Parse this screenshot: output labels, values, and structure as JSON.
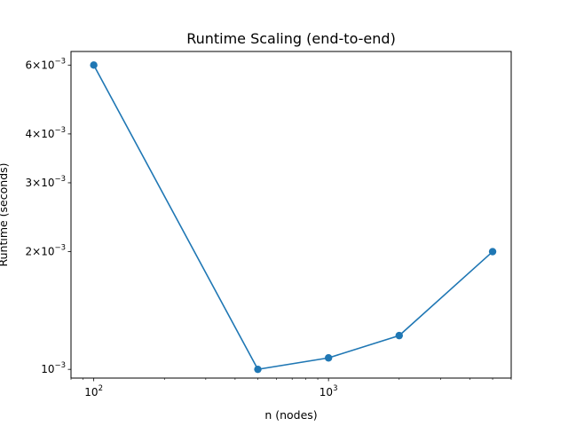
{
  "chart_data": {
    "type": "line",
    "title": "Runtime Scaling (end-to-end)",
    "xlabel": "n (nodes)",
    "ylabel": "Runtime (seconds)",
    "xscale": "log",
    "yscale": "log",
    "xlim": [
      80,
      6000
    ],
    "ylim": [
      0.00095,
      0.0065
    ],
    "grid": false,
    "legend": "none",
    "series": [
      {
        "x": [
          100,
          500,
          1000,
          2000,
          5000
        ],
        "y": [
          0.006,
          0.001,
          0.00107,
          0.00122,
          0.002
        ],
        "color": "#1f77b4",
        "marker": "circle"
      }
    ],
    "x_ticks": [
      {
        "value": 100,
        "base": "10",
        "exp": "2"
      },
      {
        "value": 1000,
        "base": "10",
        "exp": "3"
      }
    ],
    "y_ticks": [
      {
        "value": 0.001,
        "mant": "",
        "base": "10",
        "exp": "−3"
      },
      {
        "value": 0.002,
        "mant": "2×",
        "base": "10",
        "exp": "−3"
      },
      {
        "value": 0.003,
        "mant": "3×",
        "base": "10",
        "exp": "−3"
      },
      {
        "value": 0.004,
        "mant": "4×",
        "base": "10",
        "exp": "−3"
      },
      {
        "value": 0.006,
        "mant": "6×",
        "base": "10",
        "exp": "−3"
      }
    ]
  }
}
